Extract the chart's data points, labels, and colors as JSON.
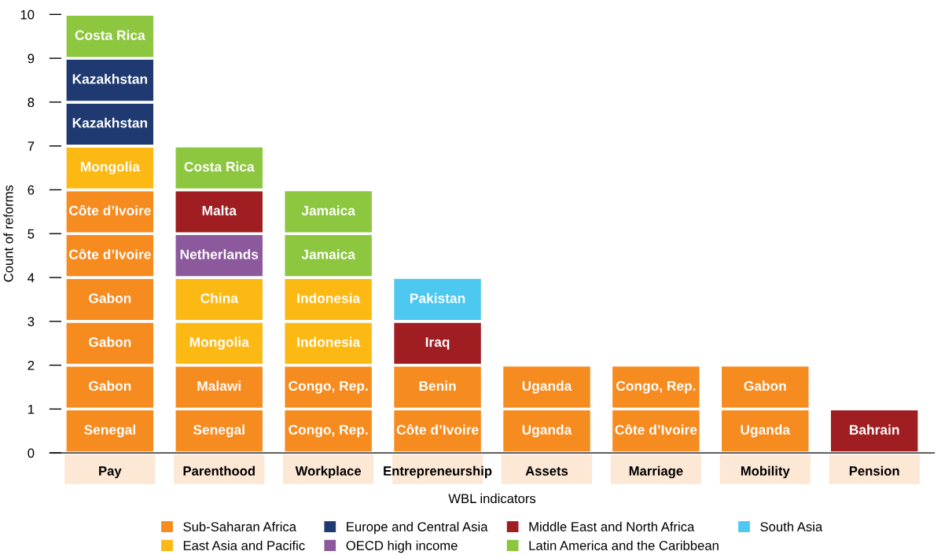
{
  "chart_data": {
    "type": "bar",
    "stacked": true,
    "xlabel": "WBL indicators",
    "ylabel": "Count of reforms",
    "categories": [
      "Pay",
      "Parenthood",
      "Workplace",
      "Entrepreneurship",
      "Assets",
      "Marriage",
      "Mobility",
      "Pension"
    ],
    "ylim": [
      0,
      10
    ],
    "yticks": [
      0,
      1,
      2,
      3,
      4,
      5,
      6,
      7,
      8,
      9,
      10
    ],
    "grid": false,
    "legend": "bottom",
    "series": [
      {
        "name": "Sub-Saharan Africa",
        "color": "#f68b1f",
        "values": [
          1,
          1,
          1,
          1,
          1,
          1,
          1,
          null
        ],
        "value_labels": [
          "Senegal",
          "Senegal",
          "Congo, Rep.",
          "Côte d’Ivoire",
          "Uganda",
          "Côte d’Ivoire",
          "Uganda",
          null
        ]
      },
      {
        "color": "#f68b1f",
        "values": [
          1,
          1,
          1,
          1,
          1,
          1,
          1,
          null
        ],
        "value_labels": [
          "Gabon",
          "Malawi",
          "Congo, Rep.",
          "Benin",
          "Uganda",
          "Congo, Rep.",
          "Gabon",
          null
        ]
      },
      {
        "color": "#f68b1f",
        "values": [
          1,
          null,
          null,
          null,
          null,
          null,
          null,
          null
        ],
        "value_labels": [
          "Gabon",
          null,
          null,
          null,
          null,
          null,
          null,
          null
        ]
      },
      {
        "color": "#f68b1f",
        "values": [
          1,
          null,
          null,
          null,
          null,
          null,
          null,
          null
        ],
        "value_labels": [
          "Gabon",
          null,
          null,
          null,
          null,
          null,
          null,
          null
        ]
      },
      {
        "color": "#f68b1f",
        "values": [
          1,
          null,
          null,
          null,
          null,
          null,
          null,
          null
        ],
        "value_labels": [
          "Côte d’Ivoire",
          null,
          null,
          null,
          null,
          null,
          null,
          null
        ]
      },
      {
        "color": "#f68b1f",
        "values": [
          1,
          null,
          null,
          null,
          null,
          null,
          null,
          null
        ],
        "value_labels": [
          "Côte d’Ivoire",
          null,
          null,
          null,
          null,
          null,
          null,
          null
        ]
      },
      {
        "name": "East Asia and Pacific",
        "color": "#fdb913",
        "values": [
          1,
          1,
          1,
          null,
          null,
          null,
          null,
          null
        ],
        "value_labels": [
          "Mongolia",
          "Mongolia",
          "Indonesia",
          null,
          null,
          null,
          null,
          null
        ]
      },
      {
        "color": "#fdb913",
        "values": [
          null,
          1,
          1,
          null,
          null,
          null,
          null,
          null
        ],
        "value_labels": [
          null,
          "China",
          "Indonesia",
          null,
          null,
          null,
          null,
          null
        ]
      },
      {
        "name": "Europe and Central Asia",
        "color": "#1f3a70",
        "values": [
          1,
          null,
          null,
          null,
          null,
          null,
          null,
          null
        ],
        "value_labels": [
          "Kazakhstan",
          null,
          null,
          null,
          null,
          null,
          null,
          null
        ]
      },
      {
        "color": "#1f3a70",
        "values": [
          1,
          null,
          null,
          null,
          null,
          null,
          null,
          null
        ],
        "value_labels": [
          "Kazakhstan",
          null,
          null,
          null,
          null,
          null,
          null,
          null
        ]
      },
      {
        "name": "OECD high income",
        "color": "#8c5a9c",
        "values": [
          null,
          1,
          null,
          null,
          null,
          null,
          null,
          null
        ],
        "value_labels": [
          null,
          "Netherlands",
          null,
          null,
          null,
          null,
          null,
          null
        ]
      },
      {
        "name": "Middle East and North Africa",
        "color": "#a01d22",
        "values": [
          null,
          1,
          null,
          1,
          null,
          null,
          null,
          1
        ],
        "value_labels": [
          null,
          "Malta",
          null,
          "Iraq",
          null,
          null,
          null,
          "Bahrain"
        ]
      },
      {
        "name": "Latin America and the Caribbean",
        "color": "#8dc63f",
        "values": [
          1,
          1,
          1,
          null,
          null,
          null,
          null,
          null
        ],
        "value_labels": [
          "Costa Rica",
          "Costa Rica",
          "Jamaica",
          null,
          null,
          null,
          null,
          null
        ]
      },
      {
        "color": "#8dc63f",
        "values": [
          null,
          null,
          1,
          null,
          null,
          null,
          null,
          null
        ],
        "value_labels": [
          null,
          null,
          "Jamaica",
          null,
          null,
          null,
          null,
          null
        ]
      },
      {
        "name": "South Asia",
        "color": "#4dc8f0",
        "values": [
          null,
          null,
          null,
          1,
          null,
          null,
          null,
          null
        ],
        "value_labels": [
          null,
          null,
          null,
          "Pakistan",
          null,
          null,
          null,
          null
        ]
      }
    ]
  }
}
